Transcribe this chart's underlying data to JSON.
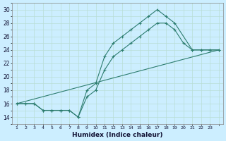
{
  "xlabel": "Humidex (Indice chaleur)",
  "bg_color": "#cceeff",
  "grid_color": "#aaddcc",
  "line_color": "#2d7d6f",
  "xlim": [
    -0.5,
    23.5
  ],
  "ylim": [
    13.0,
    31.0
  ],
  "xticks": [
    0,
    1,
    2,
    3,
    4,
    5,
    6,
    7,
    8,
    9,
    10,
    11,
    12,
    13,
    14,
    15,
    16,
    17,
    18,
    19,
    20,
    21,
    22,
    23
  ],
  "yticks": [
    14,
    16,
    18,
    20,
    22,
    24,
    26,
    28,
    30
  ],
  "line1_x": [
    0,
    1,
    2,
    3,
    4,
    5,
    6,
    7,
    8,
    9,
    10,
    11,
    12,
    13,
    14,
    15,
    16,
    17,
    18,
    20,
    21,
    22,
    23
  ],
  "line1_y": [
    16,
    16,
    16,
    15,
    15,
    15,
    15,
    14,
    18,
    19,
    23,
    25,
    26,
    27,
    28,
    29,
    30,
    29,
    28,
    24,
    24,
    24,
    24
  ],
  "line2_x": [
    0,
    1,
    2,
    3,
    4,
    5,
    6,
    7,
    8,
    9,
    10,
    11,
    12,
    13,
    14,
    15,
    16,
    17,
    18,
    19,
    20,
    21,
    22,
    23
  ],
  "line2_y": [
    16,
    16,
    16,
    15,
    15,
    15,
    15,
    14,
    17,
    18,
    21,
    23,
    24,
    25,
    26,
    27,
    28,
    28,
    27,
    25,
    24,
    24,
    24,
    24
  ],
  "line3_x": [
    0,
    23
  ],
  "line3_y": [
    16,
    24
  ]
}
